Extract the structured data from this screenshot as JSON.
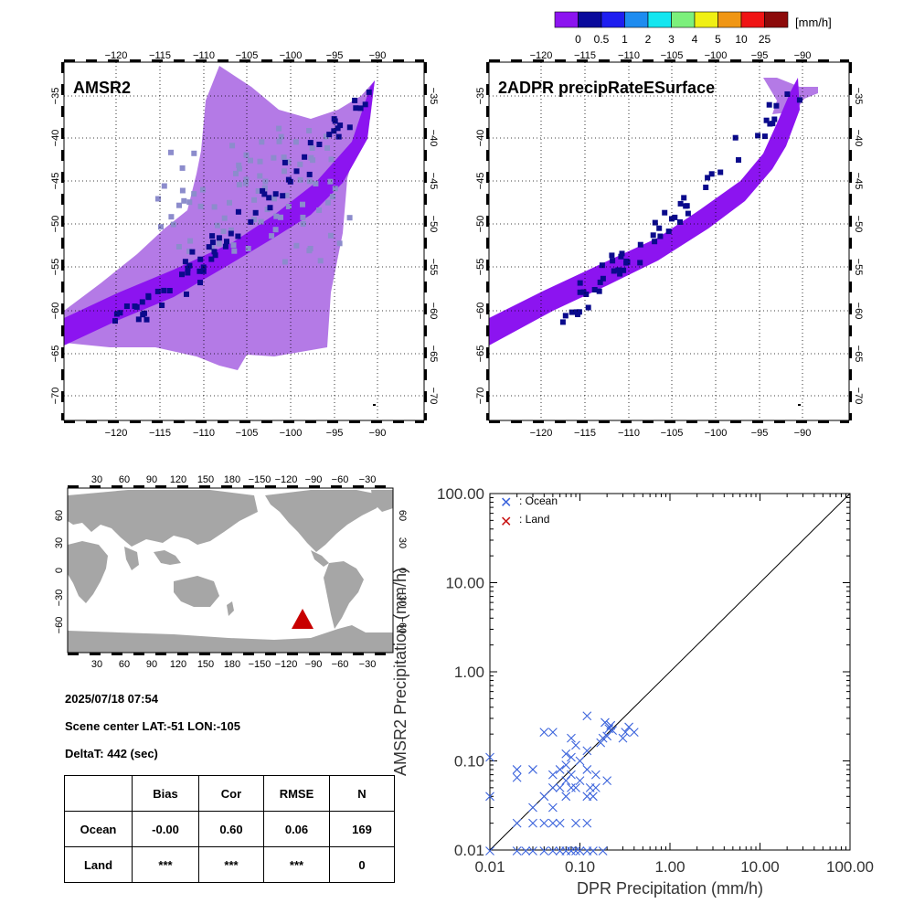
{
  "colorbar": {
    "unit": "[mm/h]",
    "ticks": [
      "0",
      "0.5",
      "1",
      "2",
      "3",
      "4",
      "5",
      "10",
      "25"
    ],
    "colors": [
      "#8c14f0",
      "#0a0a9c",
      "#1e1ef0",
      "#1e8cf0",
      "#14e6f0",
      "#7cf07c",
      "#f0f014",
      "#f09614",
      "#f01414",
      "#8c0a0a"
    ]
  },
  "map_panels": {
    "lon_ticks": [
      "−120",
      "−115",
      "−110",
      "−105",
      "−100",
      "−95",
      "−90"
    ],
    "lat_ticks": [
      "−35",
      "−40",
      "−45",
      "−50",
      "−55",
      "−60",
      "−65",
      "−70"
    ],
    "left_title": "AMSR2",
    "right_title": "2ADPR precipRateESurface",
    "colors": {
      "swath_light": "#b47ae6",
      "swath_dpr": "#8c14f0",
      "rain_heavy": "#0a0a8c",
      "cloud": "#8c8ccc"
    }
  },
  "world_map": {
    "top_ticks": [
      "30",
      "60",
      "90",
      "120",
      "150",
      "180",
      "−150",
      "−120",
      "−90",
      "−60",
      "−30"
    ],
    "lat_ticks": [
      "60",
      "30",
      "0",
      "−30",
      "−60"
    ],
    "marker_color": "#c80000"
  },
  "info": {
    "datetime": "2025/07/18 07:54",
    "scene_center": "Scene center LAT:-51   LON:-105",
    "delta_t": "DeltaT:  442 (sec)"
  },
  "stats_table": {
    "headers": [
      "",
      "Bias",
      "Cor",
      "RMSE",
      "N"
    ],
    "rows": [
      [
        "Ocean",
        "-0.00",
        "0.60",
        "0.06",
        "169"
      ],
      [
        "Land",
        "***",
        "***",
        "***",
        "0"
      ]
    ]
  },
  "chart_data": {
    "type": "scatter",
    "xlabel": "DPR Precipitation (mm/h)",
    "ylabel": "AMSR2 Precipitation (mm/h)",
    "xscale": "log",
    "yscale": "log",
    "xlim": [
      0.01,
      100
    ],
    "ylim": [
      0.01,
      100
    ],
    "x_tick_labels": [
      "0.01",
      "0.10",
      "1.00",
      "10.00",
      "100.00"
    ],
    "y_tick_labels": [
      "0.01",
      "0.10",
      "1.00",
      "10.00",
      "100.00"
    ],
    "legend_position": "top-left",
    "reference_line": "1:1",
    "series": [
      {
        "name": ": Ocean",
        "color": "#3c64dc",
        "points": [
          [
            0.01,
            0.11
          ],
          [
            0.01,
            0.04
          ],
          [
            0.01,
            0.009
          ],
          [
            0.02,
            0.08
          ],
          [
            0.02,
            0.065
          ],
          [
            0.02,
            0.02
          ],
          [
            0.02,
            0.009
          ],
          [
            0.025,
            0.009
          ],
          [
            0.03,
            0.08
          ],
          [
            0.03,
            0.03
          ],
          [
            0.03,
            0.02
          ],
          [
            0.03,
            0.009
          ],
          [
            0.04,
            0.21
          ],
          [
            0.04,
            0.04
          ],
          [
            0.04,
            0.02
          ],
          [
            0.04,
            0.009
          ],
          [
            0.05,
            0.21
          ],
          [
            0.05,
            0.07
          ],
          [
            0.05,
            0.05
          ],
          [
            0.05,
            0.03
          ],
          [
            0.05,
            0.02
          ],
          [
            0.05,
            0.009
          ],
          [
            0.06,
            0.08
          ],
          [
            0.06,
            0.05
          ],
          [
            0.06,
            0.02
          ],
          [
            0.06,
            0.009
          ],
          [
            0.07,
            0.12
          ],
          [
            0.07,
            0.09
          ],
          [
            0.07,
            0.06
          ],
          [
            0.07,
            0.04
          ],
          [
            0.07,
            0.009
          ],
          [
            0.08,
            0.18
          ],
          [
            0.08,
            0.11
          ],
          [
            0.08,
            0.07
          ],
          [
            0.08,
            0.05
          ],
          [
            0.08,
            0.009
          ],
          [
            0.09,
            0.15
          ],
          [
            0.09,
            0.05
          ],
          [
            0.09,
            0.02
          ],
          [
            0.09,
            0.009
          ],
          [
            0.1,
            0.1
          ],
          [
            0.1,
            0.06
          ],
          [
            0.1,
            0.009
          ],
          [
            0.12,
            0.32
          ],
          [
            0.12,
            0.13
          ],
          [
            0.12,
            0.08
          ],
          [
            0.12,
            0.04
          ],
          [
            0.12,
            0.02
          ],
          [
            0.12,
            0.009
          ],
          [
            0.13,
            0.05
          ],
          [
            0.14,
            0.04
          ],
          [
            0.14,
            0.009
          ],
          [
            0.15,
            0.07
          ],
          [
            0.15,
            0.05
          ],
          [
            0.17,
            0.16
          ],
          [
            0.18,
            0.18
          ],
          [
            0.18,
            0.009
          ],
          [
            0.19,
            0.27
          ],
          [
            0.2,
            0.19
          ],
          [
            0.2,
            0.06
          ],
          [
            0.21,
            0.23
          ],
          [
            0.22,
            0.25
          ],
          [
            0.23,
            0.22
          ],
          [
            0.3,
            0.18
          ],
          [
            0.32,
            0.21
          ],
          [
            0.35,
            0.24
          ],
          [
            0.4,
            0.21
          ]
        ]
      },
      {
        "name": ": Land",
        "color": "#c81414",
        "points": []
      }
    ]
  }
}
